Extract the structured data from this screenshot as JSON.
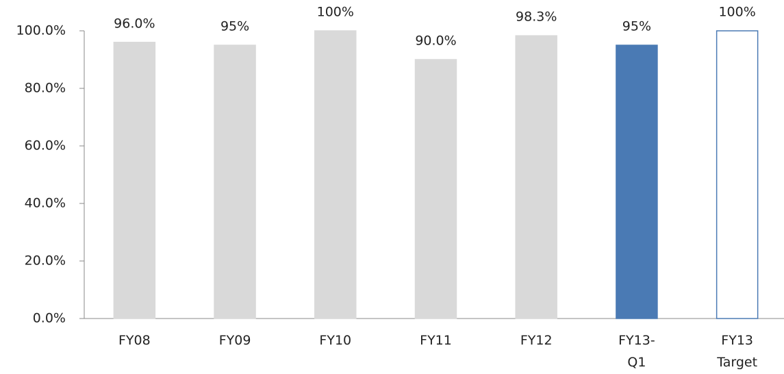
{
  "chart_data": {
    "type": "bar",
    "categories": [
      "FY08",
      "FY09",
      "FY10",
      "FY11",
      "FY12",
      "FY13-\nQ1",
      "FY13\nTarget"
    ],
    "values": [
      96,
      95,
      100,
      90,
      98.3,
      95,
      100
    ],
    "value_labels": [
      "96.0%",
      "95%",
      "100%",
      "90.0%",
      "98.3%",
      "95%",
      "100%"
    ],
    "colors": [
      "#d9d9d9",
      "#d9d9d9",
      "#d9d9d9",
      "#d9d9d9",
      "#d9d9d9",
      "#4a7ab4",
      "#ffffff"
    ],
    "edge_colors": [
      "#d9d9d9",
      "#d9d9d9",
      "#d9d9d9",
      "#d9d9d9",
      "#d9d9d9",
      "#4a7ab4",
      "#4a7ab4"
    ],
    "ylim": [
      0,
      100
    ],
    "yticks": [
      {
        "value": 0,
        "label": "0.0%"
      },
      {
        "value": 20,
        "label": "20.0%"
      },
      {
        "value": 40,
        "label": "40.0%"
      },
      {
        "value": 60,
        "label": "60.0%"
      },
      {
        "value": 80,
        "label": "80.0%"
      },
      {
        "value": 100,
        "label": "100.0%"
      }
    ],
    "grid": false
  }
}
